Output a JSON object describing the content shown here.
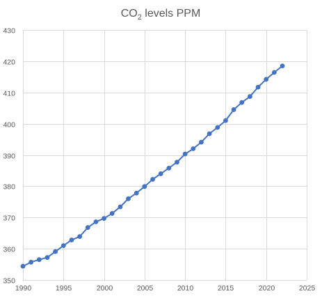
{
  "colors": {
    "series": "#4472c4",
    "grid": "#d9d9d9",
    "text": "#595959"
  },
  "chart_data": {
    "type": "scatter",
    "title_main": "CO",
    "title_sub": "2",
    "title_rest": " levels PPM",
    "xlabel": "",
    "ylabel": "",
    "xlim": [
      1990,
      2025
    ],
    "ylim": [
      350,
      430
    ],
    "x_ticks": [
      1990,
      1995,
      2000,
      2005,
      2010,
      2015,
      2020,
      2025
    ],
    "y_ticks": [
      350,
      360,
      370,
      380,
      390,
      400,
      410,
      420,
      430
    ],
    "grid": true,
    "legend": "none",
    "series": [
      {
        "x": [
          1990,
          1991,
          1992,
          1993,
          1994,
          1995,
          1996,
          1997,
          1998,
          1999,
          2000,
          2001,
          2002,
          2003,
          2004,
          2005,
          2006,
          2007,
          2008,
          2009,
          2010,
          2011,
          2012,
          2013,
          2014,
          2015,
          2016,
          2017,
          2018,
          2019,
          2020,
          2021,
          2022
        ],
        "y": [
          354.4,
          355.7,
          356.5,
          357.2,
          359.1,
          361.0,
          362.8,
          363.9,
          366.8,
          368.6,
          369.7,
          371.3,
          373.4,
          376.0,
          377.8,
          379.9,
          382.2,
          384.0,
          385.8,
          387.7,
          390.3,
          392.0,
          394.1,
          396.8,
          398.8,
          401.0,
          404.5,
          406.8,
          408.7,
          411.7,
          414.2,
          416.4,
          418.5
        ]
      }
    ]
  }
}
